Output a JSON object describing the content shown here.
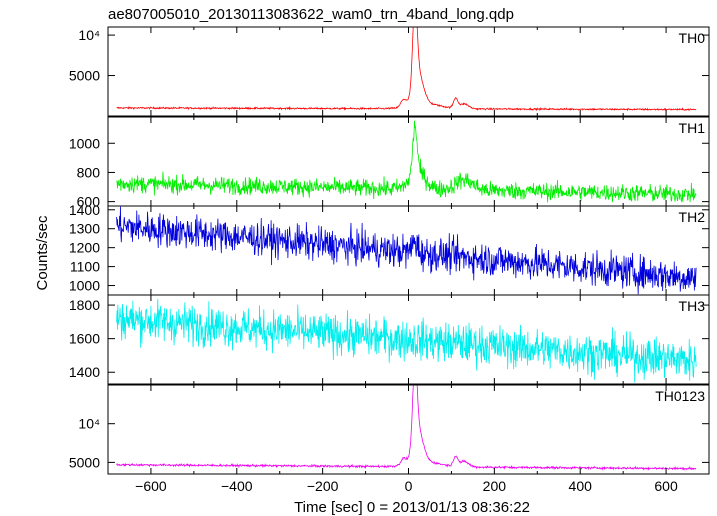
{
  "chart_data": {
    "type": "line",
    "title": "ae807005010_20130113083622_wam0_trn_4band_long.qdp",
    "xlabel": "Time [sec] 0 = 2013/01/13 08:36:22",
    "ylabel": "Counts/sec",
    "xlim": [
      -700,
      700
    ],
    "x_ticks": [
      -600,
      -400,
      -200,
      0,
      200,
      400,
      600
    ],
    "x_tick_labels": [
      "−600",
      "−400",
      "−200",
      "0",
      "200",
      "400",
      "600"
    ],
    "x_range": [
      -680,
      670
    ],
    "grid": false,
    "panels": [
      {
        "name": "TH0",
        "color": "#ff0000",
        "ylim": [
          0,
          11000
        ],
        "y_ticks": [
          5000,
          10000
        ],
        "y_tick_labels": [
          "5000",
          "10⁴"
        ],
        "baseline_start": 1000,
        "baseline_end": 800,
        "noise": 50,
        "features": [
          {
            "x": -12,
            "peak": 900,
            "width": 6
          },
          {
            "x": 15,
            "peak": 9800,
            "width": 5
          },
          {
            "x": 22,
            "peak": 4000,
            "width": 12
          },
          {
            "x": 40,
            "peak": 600,
            "width": 35
          },
          {
            "x": 110,
            "peak": 1200,
            "width": 5
          },
          {
            "x": 130,
            "peak": 600,
            "width": 10
          }
        ]
      },
      {
        "name": "TH1",
        "color": "#00ee00",
        "ylim": [
          570,
          1180
        ],
        "y_ticks": [
          600,
          800,
          1000
        ],
        "y_tick_labels": [
          "600",
          "800",
          "1000"
        ],
        "baseline_start": 725,
        "baseline_end": 650,
        "noise": 30,
        "features": [
          {
            "x": 15,
            "peak": 320,
            "width": 5
          },
          {
            "x": 22,
            "peak": 120,
            "width": 18
          },
          {
            "x": 130,
            "peak": 70,
            "width": 20
          }
        ]
      },
      {
        "name": "TH2",
        "color": "#0000dd",
        "ylim": [
          950,
          1420
        ],
        "y_ticks": [
          1000,
          1100,
          1200,
          1300,
          1400
        ],
        "y_tick_labels": [
          "1000",
          "1100",
          "1200",
          "1300",
          "1400"
        ],
        "baseline_start": 1315,
        "baseline_end": 1040,
        "noise": 45,
        "features": [
          {
            "x": 15,
            "peak": 60,
            "width": 6
          }
        ]
      },
      {
        "name": "TH3",
        "color": "#00eeee",
        "ylim": [
          1330,
          1860
        ],
        "y_ticks": [
          1400,
          1600,
          1800
        ],
        "y_tick_labels": [
          "1400",
          "1600",
          "1800"
        ],
        "baseline_start": 1720,
        "baseline_end": 1470,
        "noise": 60,
        "features": []
      },
      {
        "name": "TH0123",
        "color": "#ee00ee",
        "ylim": [
          3500,
          15000
        ],
        "y_ticks": [
          5000,
          10000
        ],
        "y_tick_labels": [
          "5000",
          "10⁴"
        ],
        "baseline_start": 4700,
        "baseline_end": 4200,
        "noise": 70,
        "features": [
          {
            "x": -12,
            "peak": 800,
            "width": 6
          },
          {
            "x": 15,
            "peak": 10000,
            "width": 5
          },
          {
            "x": 22,
            "peak": 4200,
            "width": 12
          },
          {
            "x": 40,
            "peak": 600,
            "width": 35
          },
          {
            "x": 110,
            "peak": 1300,
            "width": 5
          },
          {
            "x": 130,
            "peak": 700,
            "width": 10
          }
        ]
      }
    ]
  }
}
